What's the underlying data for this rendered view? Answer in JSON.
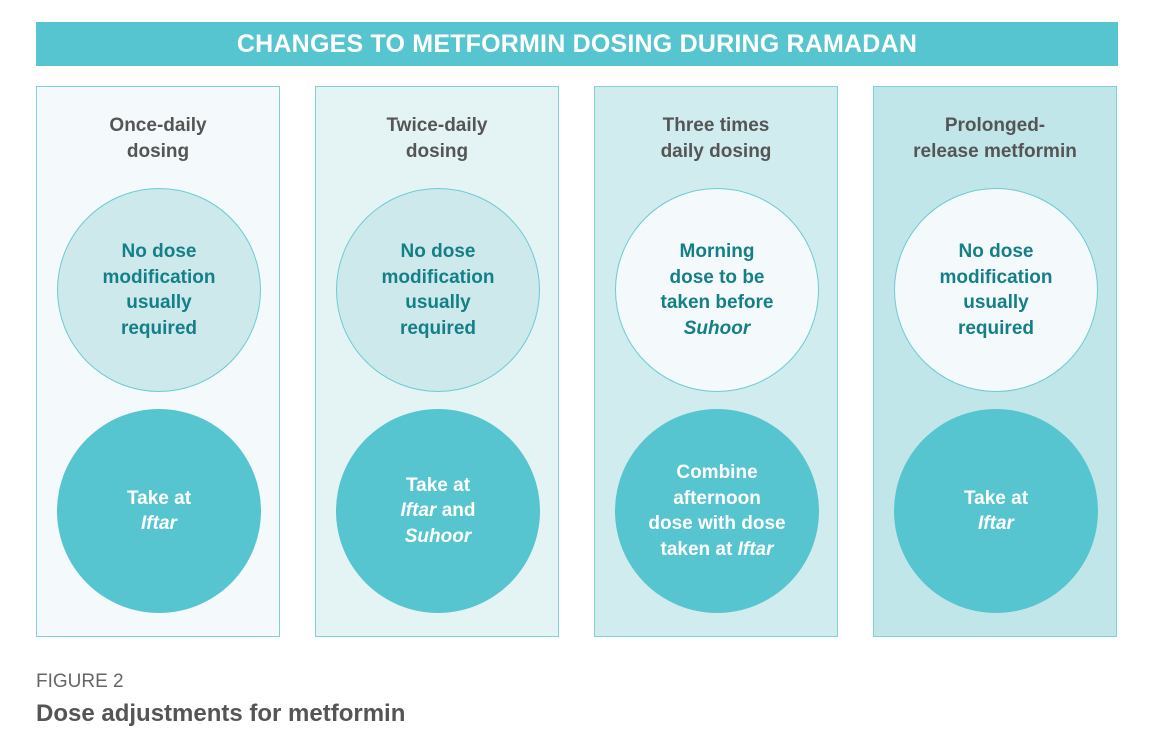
{
  "banner": {
    "title": "CHANGES TO METFORMIN DOSING DURING RAMADAN"
  },
  "columns": [
    {
      "heading": [
        "Once-daily",
        "dosing"
      ],
      "top": [
        [
          "No dose"
        ],
        [
          "modification"
        ],
        [
          "usually"
        ],
        [
          "required"
        ]
      ],
      "bottom": [
        [
          "Take at"
        ],
        [
          "Iftar"
        ]
      ],
      "bottom_italic": [
        [
          false
        ],
        [
          true
        ]
      ],
      "top_italic": [
        [
          false
        ],
        [
          false
        ],
        [
          false
        ],
        [
          false
        ]
      ]
    },
    {
      "heading": [
        "Twice-daily",
        "dosing"
      ],
      "top": [
        [
          "No dose"
        ],
        [
          "modification"
        ],
        [
          "usually"
        ],
        [
          "required"
        ]
      ],
      "bottom": [
        [
          "Take at"
        ],
        [
          "Iftar",
          " and"
        ],
        [
          "Suhoor"
        ]
      ],
      "bottom_italic": [
        [
          false
        ],
        [
          true,
          false
        ],
        [
          true
        ]
      ],
      "top_italic": [
        [
          false
        ],
        [
          false
        ],
        [
          false
        ],
        [
          false
        ]
      ]
    },
    {
      "heading": [
        "Three times",
        "daily dosing"
      ],
      "top": [
        [
          "Morning"
        ],
        [
          "dose to be"
        ],
        [
          "taken before"
        ],
        [
          "Suhoor"
        ]
      ],
      "top_italic": [
        [
          false
        ],
        [
          false
        ],
        [
          false
        ],
        [
          true
        ]
      ],
      "bottom": [
        [
          "Combine"
        ],
        [
          "afternoon"
        ],
        [
          "dose with dose"
        ],
        [
          "taken at ",
          "Iftar"
        ]
      ],
      "bottom_italic": [
        [
          false
        ],
        [
          false
        ],
        [
          false
        ],
        [
          false,
          true
        ]
      ]
    },
    {
      "heading": [
        "Prolonged-",
        "release metformin"
      ],
      "top": [
        [
          "No dose"
        ],
        [
          "modification"
        ],
        [
          "usually"
        ],
        [
          "required"
        ]
      ],
      "top_italic": [
        [
          false
        ],
        [
          false
        ],
        [
          false
        ],
        [
          false
        ]
      ],
      "bottom": [
        [
          "Take at"
        ],
        [
          "Iftar"
        ]
      ],
      "bottom_italic": [
        [
          false
        ],
        [
          true
        ]
      ]
    }
  ],
  "colors": {
    "accent": "#56c5cf",
    "column_backgrounds": [
      "#f4fafb",
      "#e4f4f5",
      "#d1ecee",
      "#c0e6ea"
    ],
    "top_circle_fills": [
      "#cde9ec",
      "#cde9ec",
      "#f4fafb",
      "#f4fafb"
    ]
  },
  "figure": {
    "label": "FIGURE 2",
    "title": "Dose adjustments for metformin"
  }
}
